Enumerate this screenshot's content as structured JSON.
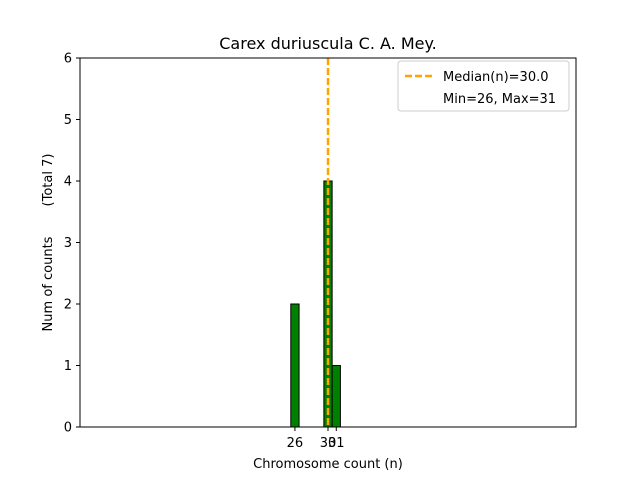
{
  "chart_data": {
    "type": "bar",
    "title": "Carex duriuscula C. A. Mey.",
    "xlabel": "Chromosome count (n)",
    "ylabel": "Num of counts",
    "ylabel_total": "(Total 7)",
    "xlim": [
      0,
      60
    ],
    "ylim": [
      0,
      6
    ],
    "yticks": [
      0,
      1,
      2,
      3,
      4,
      5,
      6
    ],
    "xticks": [
      26,
      30,
      31
    ],
    "bars": [
      {
        "x": 26,
        "value": 2
      },
      {
        "x": 30,
        "value": 4
      },
      {
        "x": 31,
        "value": 1
      }
    ],
    "bar_color": "#008000",
    "median": 30.0,
    "median_color": "#ffa500",
    "legend": {
      "placement": "top-right",
      "median_label": "Median(n)=30.0",
      "range_label": "Min=26, Max=31"
    },
    "grid": false
  }
}
